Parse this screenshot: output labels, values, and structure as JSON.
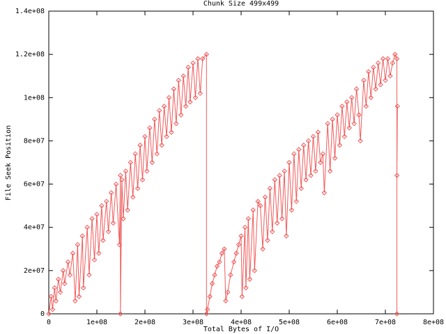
{
  "chart_data": {
    "type": "line",
    "title": "Chunk Size 499x499",
    "x_label": "Total Bytes of I/O",
    "y_label": "File Seek Position",
    "color": "#f05a5a",
    "xlim": [
      0,
      800000000.0
    ],
    "ylim": [
      0,
      140000000.0
    ],
    "xticks": [
      {
        "value": 0,
        "label": "0"
      },
      {
        "value": 100000000.0,
        "label": "1e+08"
      },
      {
        "value": 200000000.0,
        "label": "2e+08"
      },
      {
        "value": 300000000.0,
        "label": "3e+08"
      },
      {
        "value": 400000000.0,
        "label": "4e+08"
      },
      {
        "value": 500000000.0,
        "label": "5e+08"
      },
      {
        "value": 600000000.0,
        "label": "6e+08"
      },
      {
        "value": 700000000.0,
        "label": "7e+08"
      },
      {
        "value": 800000000.0,
        "label": "8e+08"
      }
    ],
    "yticks": [
      {
        "value": 0,
        "label": "0"
      },
      {
        "value": 20000000.0,
        "label": "2e+07"
      },
      {
        "value": 40000000.0,
        "label": "4e+07"
      },
      {
        "value": 60000000.0,
        "label": "6e+07"
      },
      {
        "value": 80000000.0,
        "label": "8e+07"
      },
      {
        "value": 100000000.0,
        "label": "1e+08"
      },
      {
        "value": 120000000.0,
        "label": "1.2e+08"
      },
      {
        "value": 140000000.0,
        "label": "1.4e+08"
      }
    ],
    "x": [
      0,
      5000000.0,
      8000000.0,
      12000000.0,
      15000000.0,
      20000000.0,
      24000000.0,
      30000000.0,
      33000000.0,
      40000000.0,
      44000000.0,
      50000000.0,
      55000000.0,
      60000000.0,
      63000000.0,
      70000000.0,
      72000000.0,
      80000000.0,
      84000000.0,
      90000000.0,
      95000000.0,
      100000000.0,
      104000000.0,
      110000000.0,
      113000000.0,
      120000000.0,
      124000000.0,
      130000000.0,
      134000000.0,
      140000000.0,
      147000000.0,
      149000000.0,
      149000000.0,
      152000000.0,
      155000000.0,
      160000000.0,
      164000000.0,
      170000000.0,
      175000000.0,
      180000000.0,
      185000000.0,
      190000000.0,
      195000000.0,
      200000000.0,
      204000000.0,
      210000000.0,
      215000000.0,
      220000000.0,
      225000000.0,
      230000000.0,
      235000000.0,
      240000000.0,
      245000000.0,
      250000000.0,
      255000000.0,
      260000000.0,
      265000000.0,
      270000000.0,
      275000000.0,
      280000000.0,
      285000000.0,
      290000000.0,
      294000000.0,
      300000000.0,
      305000000.0,
      310000000.0,
      315000000.0,
      320000000.0,
      328000000.0,
      328000000.0,
      330000000.0,
      335000000.0,
      340000000.0,
      345000000.0,
      350000000.0,
      355000000.0,
      360000000.0,
      365000000.0,
      368000000.0,
      372000000.0,
      378000000.0,
      385000000.0,
      390000000.0,
      395000000.0,
      400000000.0,
      402000000.0,
      408000000.0,
      410000000.0,
      415000000.0,
      418000000.0,
      425000000.0,
      428000000.0,
      435000000.0,
      440000000.0,
      445000000.0,
      450000000.0,
      455000000.0,
      460000000.0,
      465000000.0,
      470000000.0,
      475000000.0,
      480000000.0,
      485000000.0,
      490000000.0,
      494000000.0,
      500000000.0,
      505000000.0,
      510000000.0,
      515000000.0,
      520000000.0,
      525000000.0,
      530000000.0,
      535000000.0,
      540000000.0,
      545000000.0,
      550000000.0,
      555000000.0,
      560000000.0,
      565000000.0,
      570000000.0,
      573000000.0,
      580000000.0,
      585000000.0,
      590000000.0,
      595000000.0,
      600000000.0,
      605000000.0,
      610000000.0,
      615000000.0,
      620000000.0,
      625000000.0,
      630000000.0,
      635000000.0,
      640000000.0,
      645000000.0,
      648000000.0,
      655000000.0,
      660000000.0,
      665000000.0,
      670000000.0,
      675000000.0,
      680000000.0,
      685000000.0,
      690000000.0,
      695000000.0,
      700000000.0,
      705000000.0,
      710000000.0,
      715000000.0,
      720000000.0,
      724000000.0,
      724000000.0,
      724000000.0,
      725000000.0
    ],
    "values": [
      0,
      8000000.0,
      2000000.0,
      12000000.0,
      6000000.0,
      16000000.0,
      10000000.0,
      20000000.0,
      14000000.0,
      24000000.0,
      18000000.0,
      28000000.0,
      6000000.0,
      32000000.0,
      8000000.0,
      36000000.0,
      12000000.0,
      40000000.0,
      18000000.0,
      44000000.0,
      25000000.0,
      46000000.0,
      28000000.0,
      50000000.0,
      34000000.0,
      52000000.0,
      38000000.0,
      56000000.0,
      42000000.0,
      60000000.0,
      32000000.0,
      64000000.0,
      0,
      62000000.0,
      44000000.0,
      66000000.0,
      48000000.0,
      70000000.0,
      54000000.0,
      74000000.0,
      58000000.0,
      78000000.0,
      62000000.0,
      82000000.0,
      66000000.0,
      86000000.0,
      70000000.0,
      90000000.0,
      74000000.0,
      94000000.0,
      78000000.0,
      96000000.0,
      82000000.0,
      100000000.0,
      84000000.0,
      104000000.0,
      88000000.0,
      108000000.0,
      92000000.0,
      110000000.0,
      96000000.0,
      114000000.0,
      98000000.0,
      116000000.0,
      100000000.0,
      118000000.0,
      102000000.0,
      118000000.0,
      120000000.0,
      0,
      2000000.0,
      8000000.0,
      14000000.0,
      18000000.0,
      22000000.0,
      24000000.0,
      28000000.0,
      30000000.0,
      6000000.0,
      10000000.0,
      18000000.0,
      24000000.0,
      28000000.0,
      32000000.0,
      36000000.0,
      8000000.0,
      40000000.0,
      12000000.0,
      44000000.0,
      16000000.0,
      48000000.0,
      20000000.0,
      52000000.0,
      50000000.0,
      30000000.0,
      54000000.0,
      34000000.0,
      58000000.0,
      38000000.0,
      62000000.0,
      42000000.0,
      64000000.0,
      44000000.0,
      66000000.0,
      36000000.0,
      70000000.0,
      48000000.0,
      74000000.0,
      52000000.0,
      76000000.0,
      58000000.0,
      78000000.0,
      62000000.0,
      80000000.0,
      64000000.0,
      82000000.0,
      66000000.0,
      84000000.0,
      70000000.0,
      74000000.0,
      56000000.0,
      88000000.0,
      66000000.0,
      90000000.0,
      72000000.0,
      92000000.0,
      78000000.0,
      96000000.0,
      82000000.0,
      98000000.0,
      86000000.0,
      100000000.0,
      88000000.0,
      104000000.0,
      92000000.0,
      80000000.0,
      108000000.0,
      96000000.0,
      112000000.0,
      100000000.0,
      114000000.0,
      104000000.0,
      116000000.0,
      106000000.0,
      118000000.0,
      108000000.0,
      118000000.0,
      110000000.0,
      116000000.0,
      120000000.0,
      118000000.0,
      0,
      64000000.0,
      96000000.0
    ]
  }
}
